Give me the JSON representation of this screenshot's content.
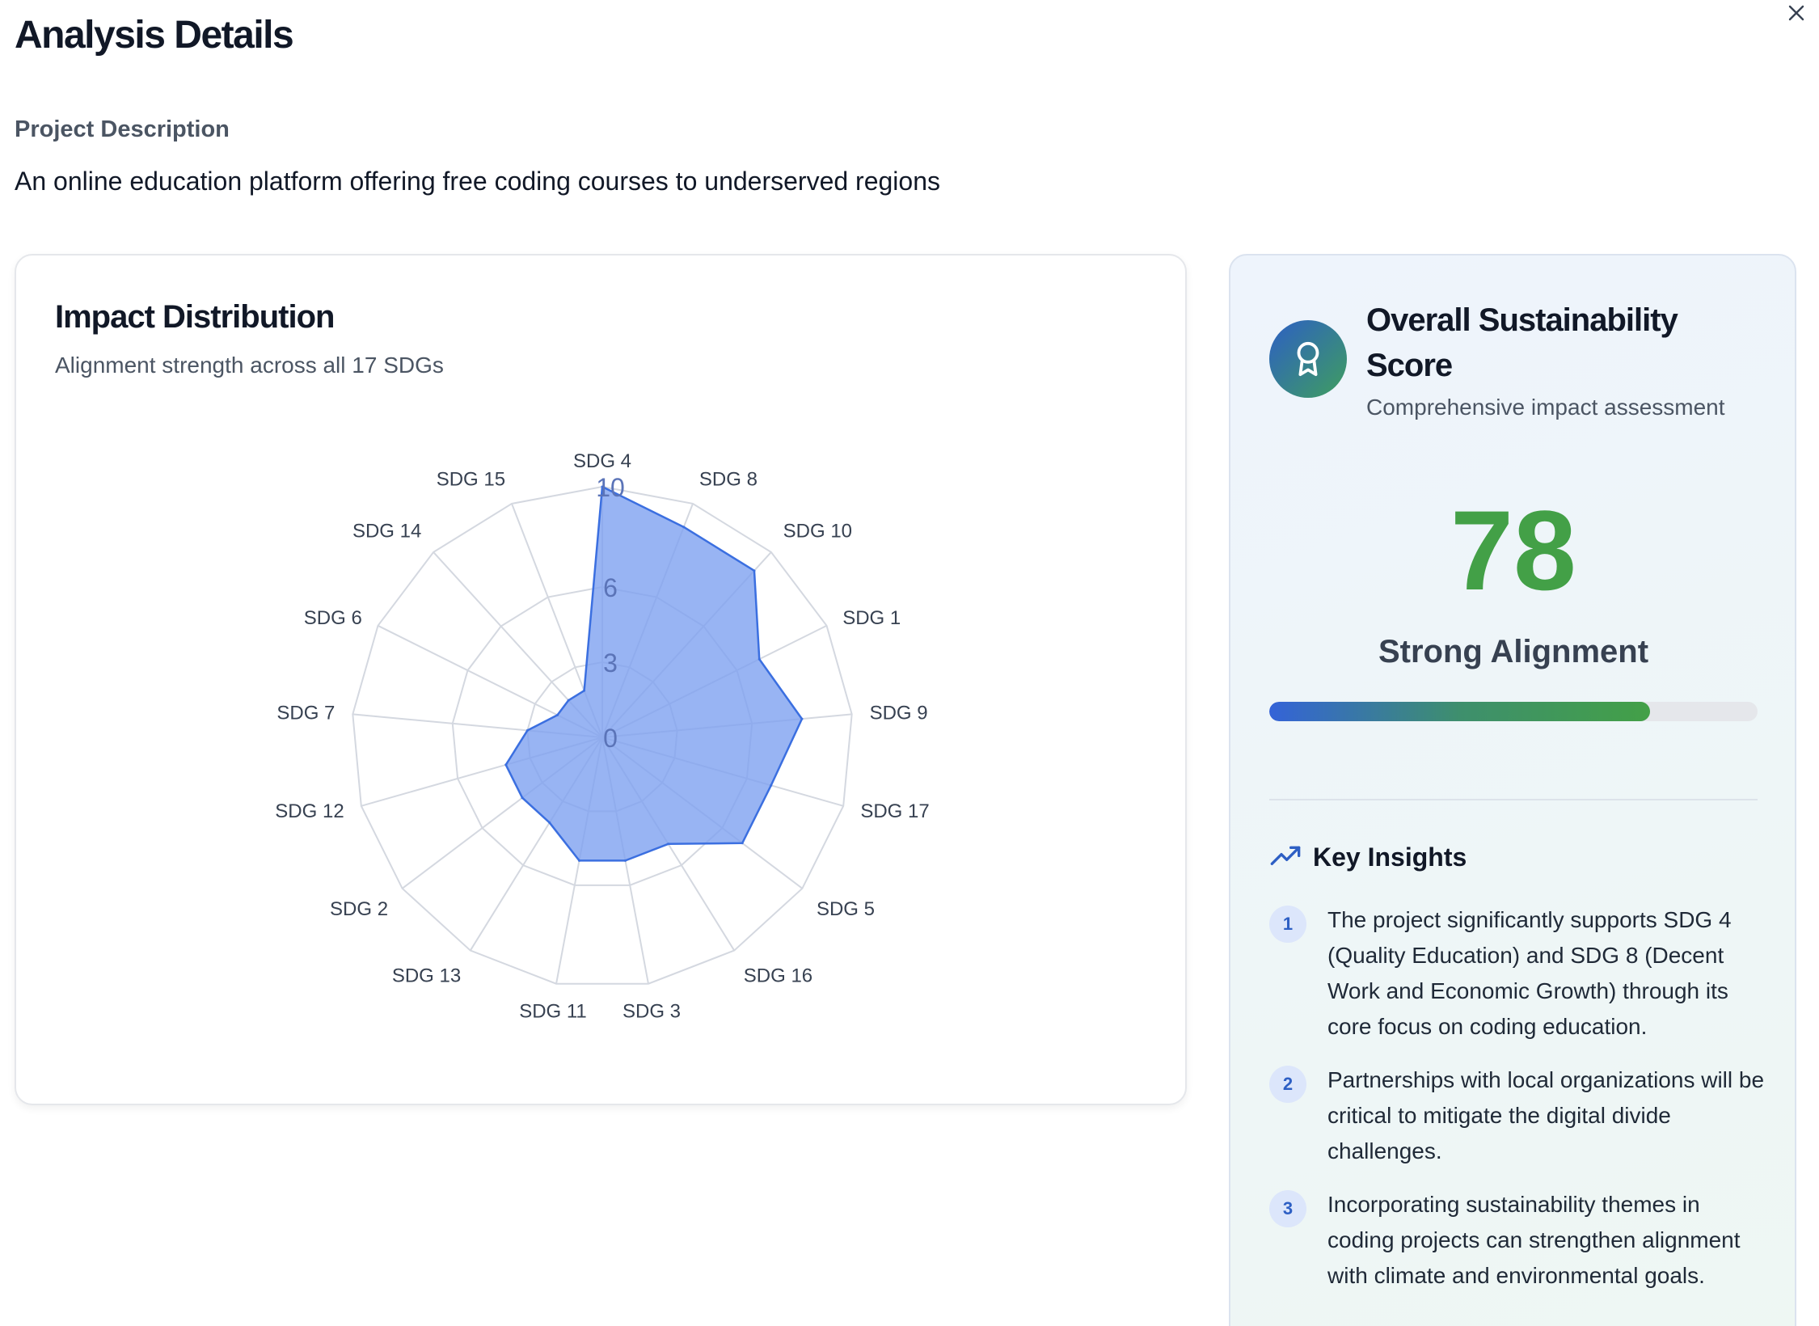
{
  "page": {
    "title": "Analysis Details",
    "close_icon": "close-icon"
  },
  "description": {
    "label": "Project Description",
    "text": "An online education platform offering free coding courses to underserved regions"
  },
  "impact": {
    "title": "Impact Distribution",
    "subtitle": "Alignment strength across all 17 SDGs"
  },
  "chart_data": {
    "type": "radar",
    "title": "Impact Distribution",
    "subtitle": "Alignment strength across all 17 SDGs",
    "categories": [
      "SDG 4",
      "SDG 8",
      "SDG 10",
      "SDG 1",
      "SDG 9",
      "SDG 17",
      "SDG 5",
      "SDG 16",
      "SDG 3",
      "SDG 11",
      "SDG 13",
      "SDG 2",
      "SDG 12",
      "SDG 7",
      "SDG 6",
      "SDG 14",
      "SDG 15"
    ],
    "values": [
      10,
      9,
      9,
      7,
      8,
      7,
      7,
      5,
      5,
      5,
      4,
      4,
      4,
      3,
      2,
      2,
      2
    ],
    "radial_ticks": [
      "0",
      "3",
      "6",
      "10"
    ],
    "rmax": 10,
    "grid": true,
    "fill_color": "#7ea1f0",
    "stroke_color": "#3b6fe0"
  },
  "score": {
    "icon": "award-icon",
    "title": "Overall Sustainability Score",
    "subtitle": "Comprehensive impact assessment",
    "value": "78",
    "progress": 0.78,
    "rating": "Strong Alignment"
  },
  "insights": {
    "icon": "trending-up-icon",
    "title": "Key Insights",
    "items": [
      {
        "num": "1",
        "text": "The project significantly supports SDG 4 (Quality Education) and SDG 8 (Decent Work and Economic Growth) through its core focus on coding education."
      },
      {
        "num": "2",
        "text": "Partnerships with local organizations will be critical to mitigate the digital divide challenges."
      },
      {
        "num": "3",
        "text": "Incorporating sustainability themes in coding projects can strengthen alignment with climate and environmental goals."
      }
    ]
  },
  "colors": {
    "score_green": "#43a047",
    "accent_blue": "#2d5fc4",
    "radar_fill": "#7ea1f0",
    "radar_stroke": "#3b6fe0"
  }
}
